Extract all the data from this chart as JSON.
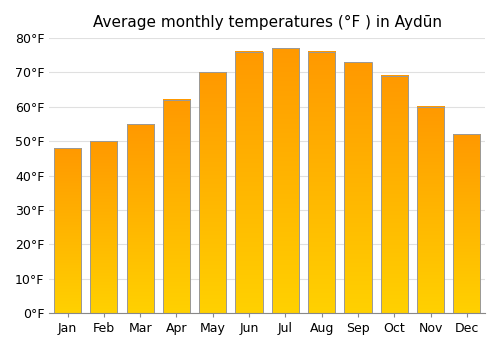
{
  "title": "Average monthly temperatures (°F ) in Aydūn",
  "months": [
    "Jan",
    "Feb",
    "Mar",
    "Apr",
    "May",
    "Jun",
    "Jul",
    "Aug",
    "Sep",
    "Oct",
    "Nov",
    "Dec"
  ],
  "values": [
    48,
    50,
    55,
    62,
    70,
    76,
    77,
    76,
    73,
    69,
    60,
    52
  ],
  "bar_color_bottom": "#FFD000",
  "bar_color_top": "#FFA000",
  "bar_edge_color": "#999999",
  "ylim": [
    0,
    80
  ],
  "yticks": [
    0,
    10,
    20,
    30,
    40,
    50,
    60,
    70,
    80
  ],
  "ytick_labels": [
    "0°F",
    "10°F",
    "20°F",
    "30°F",
    "40°F",
    "50°F",
    "60°F",
    "70°F",
    "80°F"
  ],
  "grid_color": "#E0E0E0",
  "background_color": "#FFFFFF",
  "title_fontsize": 11,
  "tick_fontsize": 9,
  "bar_width": 0.75,
  "figsize": [
    5.0,
    3.5
  ],
  "dpi": 100
}
